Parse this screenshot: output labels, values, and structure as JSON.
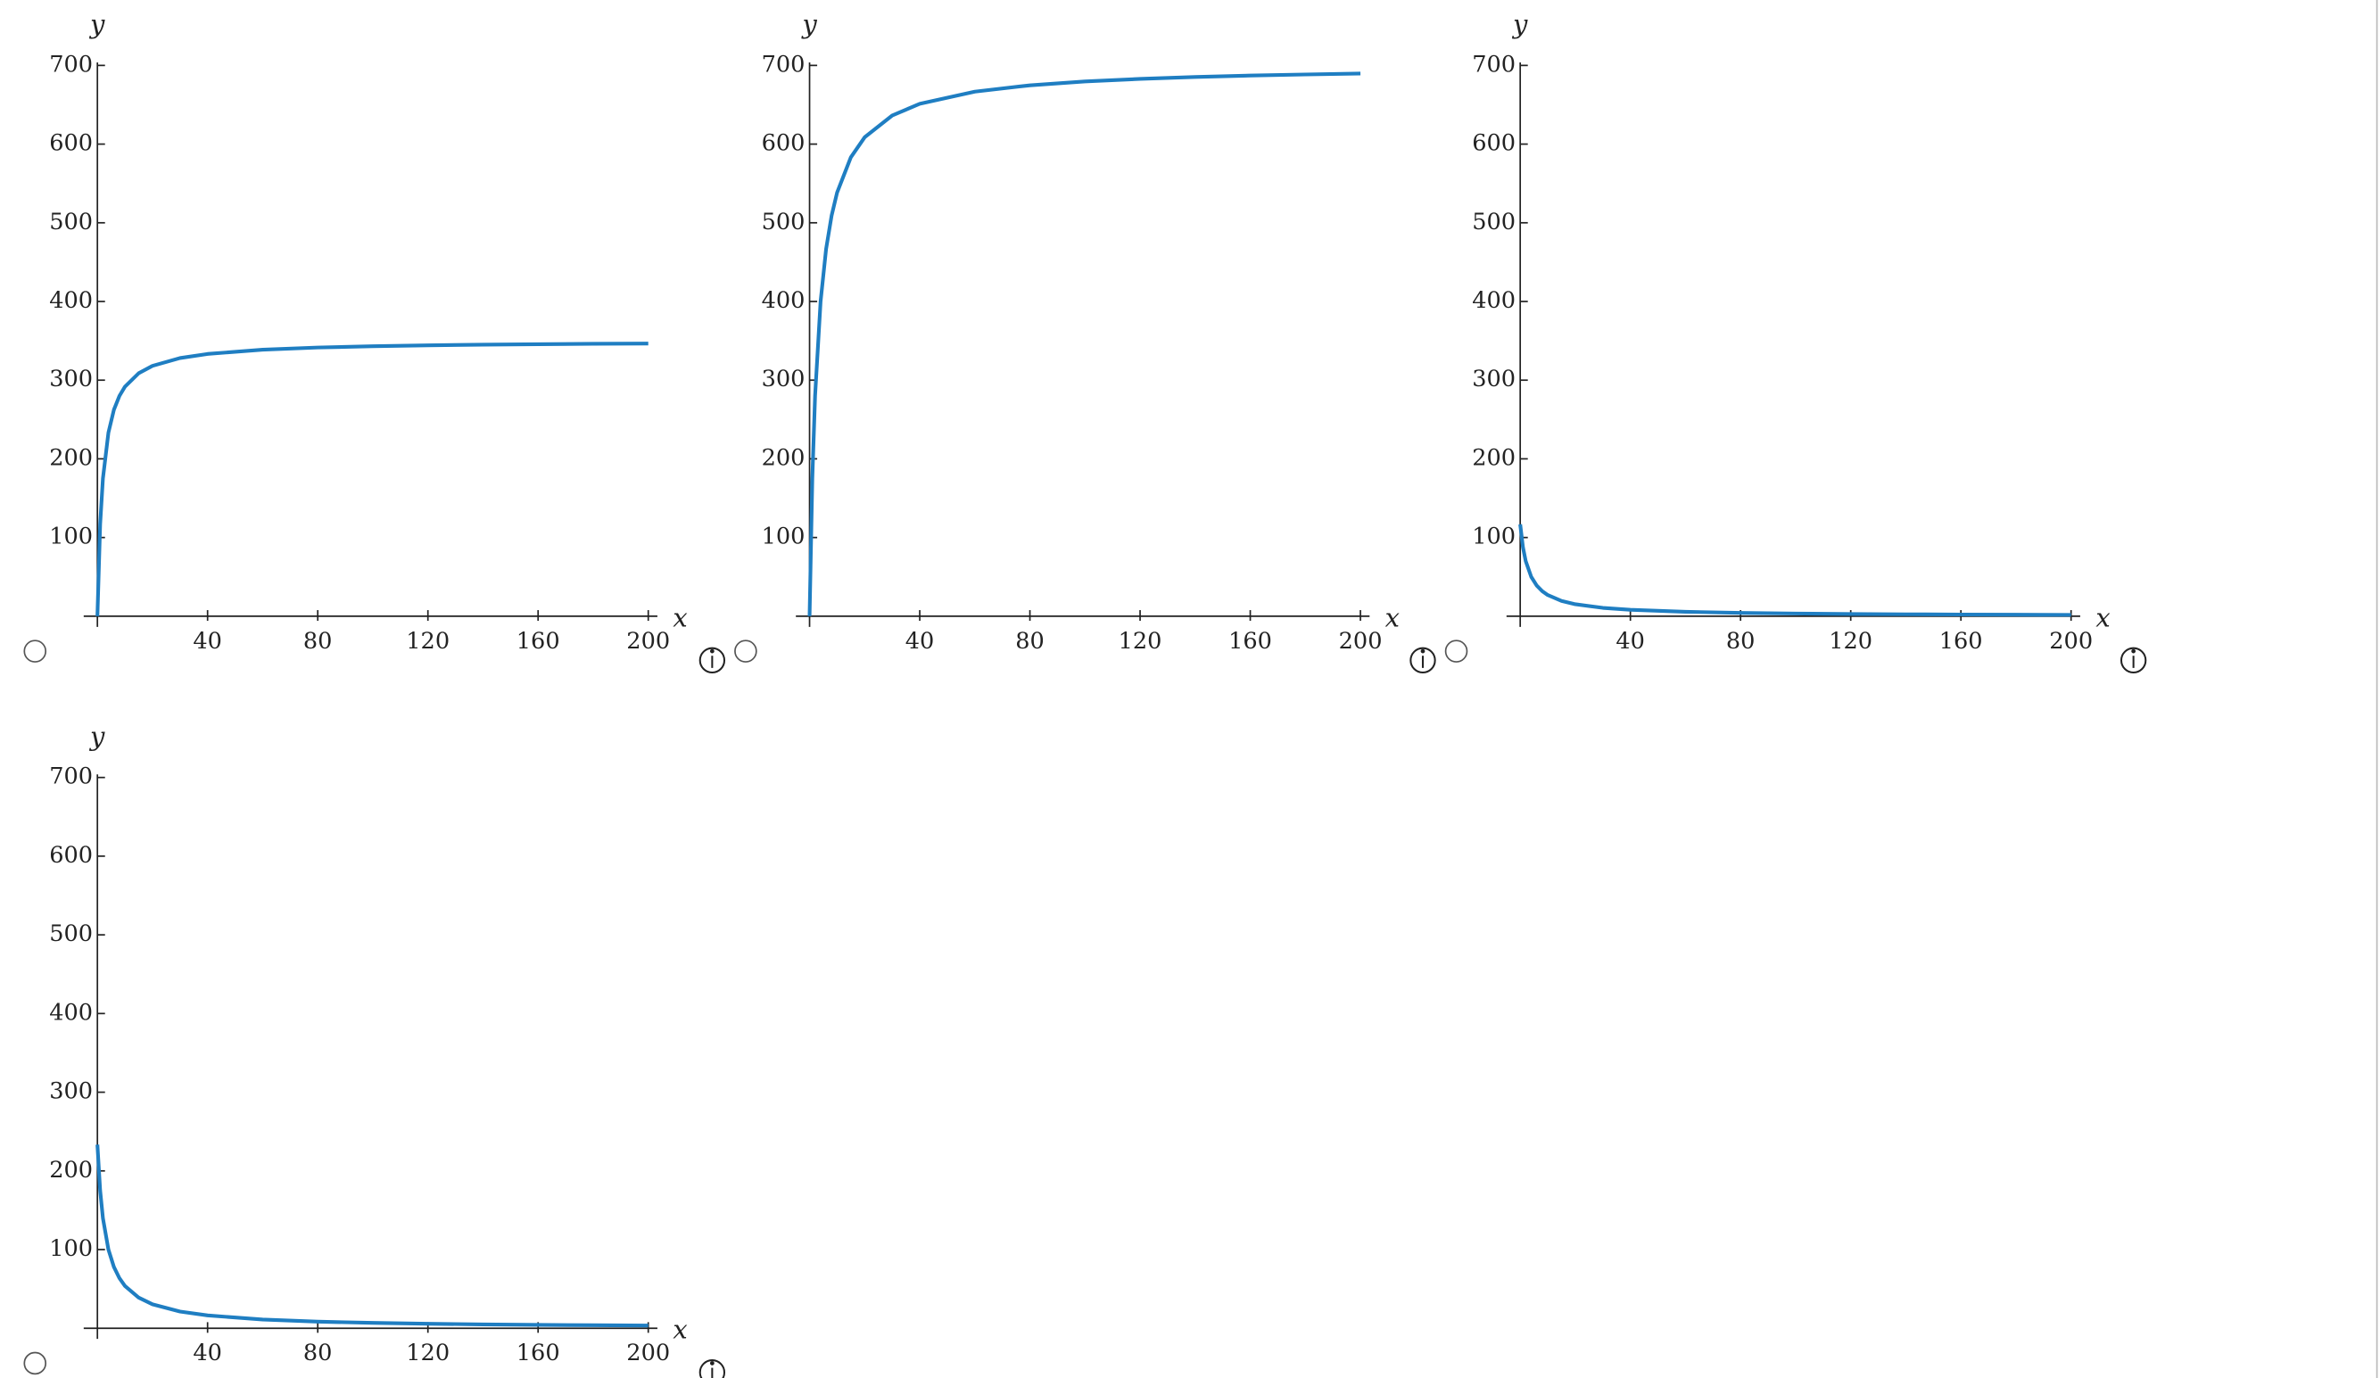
{
  "chart_data": [
    {
      "type": "line",
      "xlabel": "x",
      "ylabel": "y",
      "color": "#1f7ec2",
      "x": [
        0,
        1,
        2,
        4,
        6,
        8,
        10,
        15,
        20,
        30,
        40,
        60,
        80,
        100,
        120,
        140,
        160,
        180,
        200
      ],
      "values": [
        0,
        116.7,
        175,
        233.3,
        262.5,
        280,
        291.7,
        308.8,
        318.2,
        328.1,
        333.3,
        338.7,
        341.5,
        343.1,
        344.3,
        345.1,
        345.7,
        346.2,
        346.5
      ],
      "xlim": [
        0,
        200
      ],
      "ylim": [
        0,
        700
      ],
      "xticks": [
        40,
        80,
        120,
        160,
        200
      ],
      "yticks": [
        100,
        200,
        300,
        400,
        500,
        600,
        700
      ]
    },
    {
      "type": "line",
      "xlabel": "x",
      "ylabel": "y",
      "color": "#1f7ec2",
      "x": [
        0,
        1,
        2,
        4,
        6,
        8,
        10,
        15,
        20,
        30,
        40,
        60,
        80,
        100,
        120,
        140,
        160,
        180,
        200
      ],
      "values": [
        0,
        175,
        280,
        400,
        466.7,
        509.1,
        538.5,
        583.3,
        608.7,
        636.4,
        651.2,
        666.7,
        674.7,
        679.6,
        682.9,
        685.3,
        687.1,
        688.5,
        689.7
      ],
      "xlim": [
        0,
        200
      ],
      "ylim": [
        0,
        700
      ],
      "xticks": [
        40,
        80,
        120,
        160,
        200
      ],
      "yticks": [
        100,
        200,
        300,
        400,
        500,
        600,
        700
      ]
    },
    {
      "type": "line",
      "xlabel": "x",
      "ylabel": "y",
      "color": "#1f7ec2",
      "x": [
        0,
        1,
        2,
        4,
        6,
        8,
        10,
        15,
        20,
        30,
        40,
        60,
        80,
        100,
        120,
        140,
        160,
        180,
        200
      ],
      "values": [
        116.7,
        87.5,
        70,
        50,
        38.9,
        31.8,
        26.9,
        19.4,
        15.2,
        10.6,
        8.1,
        5.6,
        4.2,
        3.4,
        2.8,
        2.4,
        2.1,
        1.9,
        1.7
      ],
      "xlim": [
        0,
        200
      ],
      "ylim": [
        0,
        700
      ],
      "xticks": [
        40,
        80,
        120,
        160,
        200
      ],
      "yticks": [
        100,
        200,
        300,
        400,
        500,
        600,
        700
      ]
    },
    {
      "type": "line",
      "xlabel": "x",
      "ylabel": "y",
      "color": "#1f7ec2",
      "x": [
        0,
        1,
        2,
        4,
        6,
        8,
        10,
        15,
        20,
        30,
        40,
        60,
        80,
        100,
        120,
        140,
        160,
        180,
        200
      ],
      "values": [
        233.3,
        175,
        140,
        100,
        77.8,
        63.6,
        53.8,
        38.9,
        30.4,
        21.2,
        16.3,
        11.1,
        8.4,
        6.8,
        5.7,
        4.9,
        4.3,
        3.8,
        3.4
      ],
      "xlim": [
        0,
        200
      ],
      "ylim": [
        0,
        700
      ],
      "xticks": [
        40,
        80,
        120,
        160,
        200
      ],
      "yticks": [
        100,
        200,
        300,
        400,
        500,
        600,
        700
      ]
    }
  ]
}
